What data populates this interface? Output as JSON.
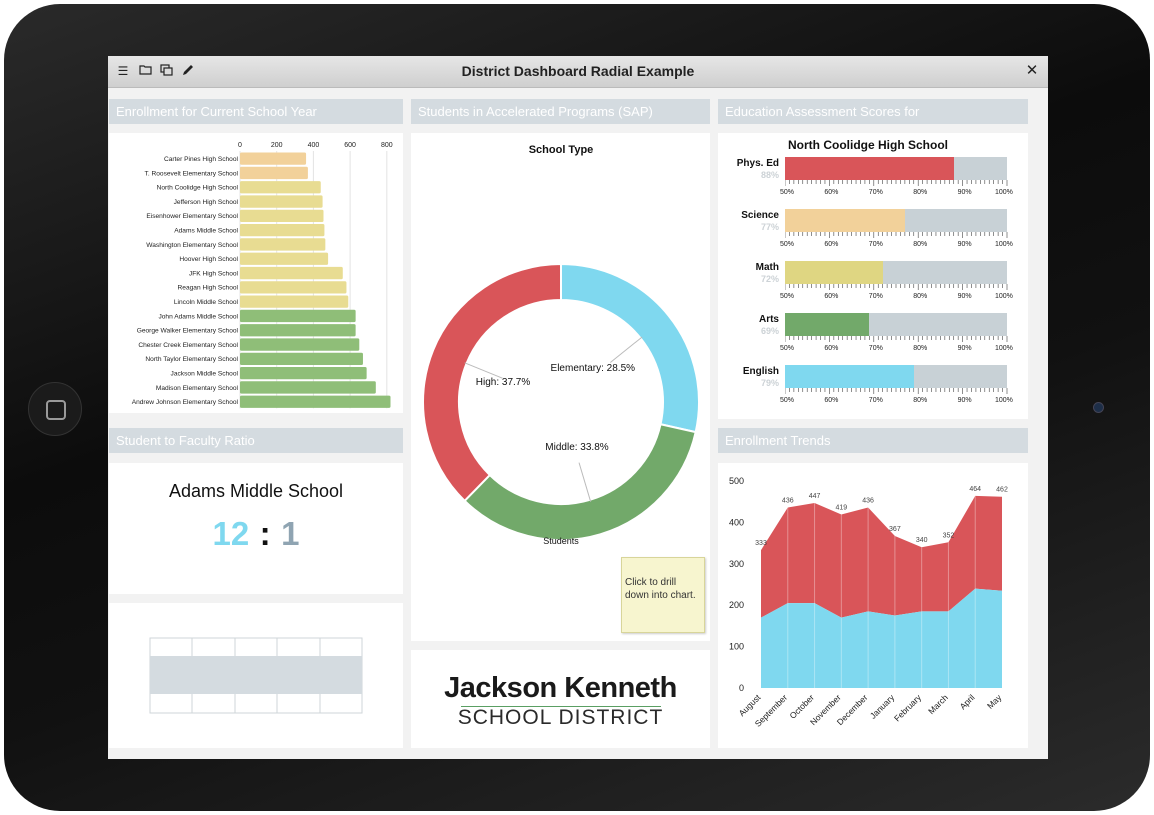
{
  "window": {
    "title": "District Dashboard Radial Example"
  },
  "toolbar": {
    "icons": [
      "menu-icon",
      "folder-icon",
      "copy-icon",
      "pen-icon"
    ],
    "close_icon": "close-icon"
  },
  "panels": {
    "enrollment": {
      "title": "Enrollment for Current School Year"
    },
    "sap": {
      "title": "Students in Accelerated Programs (SAP)"
    },
    "assessment": {
      "title": "Education Assessment Scores for"
    },
    "ratio": {
      "title": "Student to Faculty Ratio"
    },
    "trends": {
      "title": "Enrollment Trends"
    }
  },
  "enrollment_chart": {
    "type": "bar",
    "axis_ticks": [
      "0",
      "200",
      "400",
      "600",
      "800"
    ],
    "xlim": [
      0,
      850
    ],
    "categories": [
      "Carter Pines High School",
      "T. Roosevelt Elementary School",
      "North Coolidge High School",
      "Jefferson High School",
      "Eisenhower Elementary School",
      "Adams Middle School",
      "Washington Elementary School",
      "Hoover High School",
      "JFK High School",
      "Reagan High School",
      "Lincoln Middle School",
      "John Adams Middle School",
      "George Walker Elementary School",
      "Chester Creek Elementary School",
      "North Taylor Elementary School",
      "Jackson Middle School",
      "Madison Elementary School",
      "Andrew Johnson Elementary School"
    ],
    "values": [
      360,
      370,
      440,
      450,
      455,
      460,
      465,
      480,
      560,
      580,
      590,
      630,
      630,
      650,
      670,
      690,
      740,
      820
    ],
    "colors": [
      "#f2d19a",
      "#f2d19a",
      "#e8dc92",
      "#e8dc92",
      "#e8dc92",
      "#e8dc92",
      "#e8dc92",
      "#e8dc92",
      "#e8dc92",
      "#e8dc92",
      "#e8dc92",
      "#8fbe78",
      "#8fbe78",
      "#8fbe78",
      "#8fbe78",
      "#8fbe78",
      "#8fbe78",
      "#8fbe78"
    ]
  },
  "ratio": {
    "school": "Adams Middle School",
    "students": "12",
    "separator": ":",
    "faculty": "1"
  },
  "chart_data": [
    {
      "type": "pie",
      "title": "School Type",
      "xlabel": "Students",
      "categories": [
        "Elementary",
        "Middle",
        "High"
      ],
      "values": [
        28.5,
        33.8,
        37.7
      ],
      "labels": [
        "Elementary: 28.5%",
        "Middle: 33.8%",
        "High: 37.7%"
      ],
      "colors": [
        "#7fd8ef",
        "#72a96a",
        "#d95559"
      ]
    },
    {
      "type": "area",
      "categories": [
        "August",
        "September",
        "October",
        "November",
        "December",
        "January",
        "February",
        "March",
        "April",
        "May"
      ],
      "ylim": [
        0,
        500
      ],
      "yticks": [
        "0",
        "100",
        "200",
        "300",
        "400",
        "500"
      ],
      "series": [
        {
          "values": [
            170,
            205,
            205,
            170,
            185,
            175,
            185,
            185,
            240,
            235
          ],
          "color": "#7fd8ef"
        },
        {
          "values": [
            333,
            436,
            447,
            419,
            436,
            367,
            340,
            352,
            464,
            462
          ],
          "labels": [
            "333",
            "436",
            "447",
            "419",
            "436",
            "367",
            "340",
            "352",
            "464",
            "462"
          ],
          "color": "#d95559"
        }
      ]
    }
  ],
  "assessment": {
    "school": "North Coolidge High School",
    "axis": [
      "50%",
      "60%",
      "70%",
      "80%",
      "90%",
      "100%"
    ],
    "items": [
      {
        "subject": "Phys. Ed",
        "pct": "88%",
        "value": 88,
        "color": "#d95559"
      },
      {
        "subject": "Science",
        "pct": "77%",
        "value": 77,
        "color": "#f2d19a"
      },
      {
        "subject": "Math",
        "pct": "72%",
        "value": 72,
        "color": "#dfd682"
      },
      {
        "subject": "Arts",
        "pct": "69%",
        "value": 69,
        "color": "#72a96a"
      },
      {
        "subject": "English",
        "pct": "79%",
        "value": 79,
        "color": "#7fd8ef"
      }
    ]
  },
  "sticky_note": {
    "text": "Click to drill down into chart."
  },
  "logo": {
    "line1": "Jackson Kenneth",
    "line2": "SCHOOL DISTRICT"
  }
}
